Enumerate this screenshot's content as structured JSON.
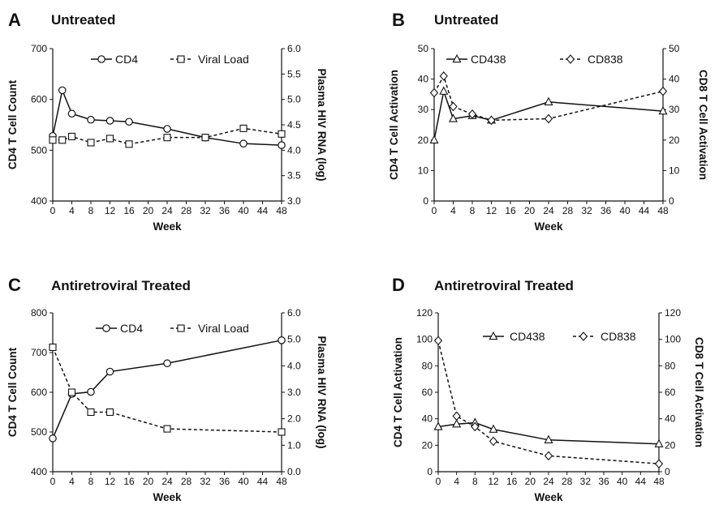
{
  "chart_data": [
    {
      "type": "line",
      "panel_label": "A",
      "title": "Untreated",
      "xlabel": "Week",
      "ylabel": "CD4 T Cell Count",
      "y2label": "Plasma HIV RNA (log)",
      "xticks": [
        "0",
        "4",
        "8",
        "12",
        "16",
        "20",
        "24",
        "28",
        "32",
        "36",
        "40",
        "44",
        "48"
      ],
      "yticks": [
        "400",
        "500",
        "600",
        "700"
      ],
      "y2ticks": [
        "3.0",
        "3.5",
        "4.0",
        "4.5",
        "5.0",
        "5.5",
        "6.0"
      ],
      "xlim": [
        0,
        48
      ],
      "ylim": [
        400,
        700
      ],
      "y2lim": [
        3.0,
        6.0
      ],
      "legend_position": "top",
      "series": [
        {
          "name": "CD4",
          "axis": "left",
          "line": "solid",
          "marker": "circle",
          "x": [
            0,
            2,
            4,
            8,
            12,
            16,
            24,
            32,
            40,
            48
          ],
          "y": [
            528,
            618,
            572,
            560,
            558,
            556,
            542,
            525,
            513,
            510
          ]
        },
        {
          "name": "Viral Load",
          "axis": "right",
          "line": "dashed",
          "marker": "square",
          "x": [
            0,
            2,
            4,
            8,
            12,
            16,
            24,
            32,
            40,
            48
          ],
          "y": [
            4.2,
            4.2,
            4.27,
            4.15,
            4.23,
            4.12,
            4.25,
            4.25,
            4.43,
            4.32
          ]
        }
      ]
    },
    {
      "type": "line",
      "panel_label": "B",
      "title": "Untreated",
      "xlabel": "Week",
      "ylabel": "CD4 T Cell Activation",
      "y2label": "CD8 T Cell Activation",
      "xticks": [
        "0",
        "4",
        "8",
        "12",
        "16",
        "20",
        "24",
        "28",
        "32",
        "36",
        "40",
        "44",
        "48"
      ],
      "yticks": [
        "0",
        "10",
        "20",
        "30",
        "40",
        "50"
      ],
      "y2ticks": [
        "0",
        "10",
        "20",
        "30",
        "40",
        "50"
      ],
      "xlim": [
        0,
        48
      ],
      "ylim": [
        0,
        50
      ],
      "y2lim": [
        0,
        50
      ],
      "legend_position": "top",
      "series": [
        {
          "name": "CD438",
          "axis": "left",
          "line": "solid",
          "marker": "triangle",
          "x": [
            0,
            2,
            4,
            8,
            12,
            24,
            48
          ],
          "y": [
            20,
            36,
            27,
            28,
            26.5,
            32.5,
            29.5
          ]
        },
        {
          "name": "CD838",
          "axis": "right",
          "line": "dashed",
          "marker": "diamond",
          "x": [
            0,
            2,
            4,
            8,
            12,
            24,
            48
          ],
          "y": [
            35.5,
            41,
            31,
            28.5,
            26.5,
            27,
            36
          ]
        }
      ]
    },
    {
      "type": "line",
      "panel_label": "C",
      "title": "Antiretroviral Treated",
      "xlabel": "Week",
      "ylabel": "CD4 T Cell Count",
      "y2label": "Plasma HIV RNA (log)",
      "xticks": [
        "0",
        "4",
        "8",
        "12",
        "16",
        "20",
        "24",
        "28",
        "32",
        "36",
        "40",
        "44",
        "48"
      ],
      "yticks": [
        "400",
        "500",
        "600",
        "700",
        "800"
      ],
      "y2ticks": [
        "0.0",
        "1.0",
        "2.0",
        "3.0",
        "4.0",
        "5.0",
        "6.0"
      ],
      "xlim": [
        0,
        48
      ],
      "ylim": [
        400,
        800
      ],
      "y2lim": [
        0,
        6
      ],
      "legend_position": "top",
      "series": [
        {
          "name": "CD4",
          "axis": "left",
          "line": "solid",
          "marker": "circle",
          "x": [
            0,
            4,
            8,
            12,
            24,
            48
          ],
          "y": [
            484,
            596,
            601,
            652,
            673,
            731
          ]
        },
        {
          "name": "Viral Load",
          "axis": "right",
          "line": "dashed",
          "marker": "square",
          "x": [
            0,
            4,
            8,
            12,
            24,
            48
          ],
          "y": [
            4.7,
            3.0,
            2.25,
            2.25,
            1.62,
            1.5
          ]
        }
      ]
    },
    {
      "type": "line",
      "panel_label": "D",
      "title": "Antiretroviral Treated",
      "xlabel": "Week",
      "ylabel": "CD4 T Cell Activation",
      "y2label": "CD8 T Cell Activation",
      "xticks": [
        "0",
        "4",
        "8",
        "12",
        "16",
        "20",
        "24",
        "28",
        "32",
        "36",
        "40",
        "44",
        "48"
      ],
      "yticks": [
        "0",
        "20",
        "40",
        "60",
        "80",
        "100",
        "120"
      ],
      "y2ticks": [
        "0",
        "20",
        "40",
        "60",
        "80",
        "100",
        "120"
      ],
      "xlim": [
        0,
        48
      ],
      "ylim": [
        0,
        120
      ],
      "y2lim": [
        0,
        120
      ],
      "legend_position": "top",
      "series": [
        {
          "name": "CD438",
          "axis": "left",
          "line": "solid",
          "marker": "triangle",
          "x": [
            0,
            4,
            8,
            12,
            24,
            48
          ],
          "y": [
            34,
            36,
            37,
            32,
            24,
            21
          ]
        },
        {
          "name": "CD838",
          "axis": "right",
          "line": "dashed",
          "marker": "diamond",
          "x": [
            0,
            4,
            8,
            12,
            24,
            48
          ],
          "y": [
            99,
            42,
            34,
            23,
            12,
            6
          ]
        }
      ]
    }
  ]
}
